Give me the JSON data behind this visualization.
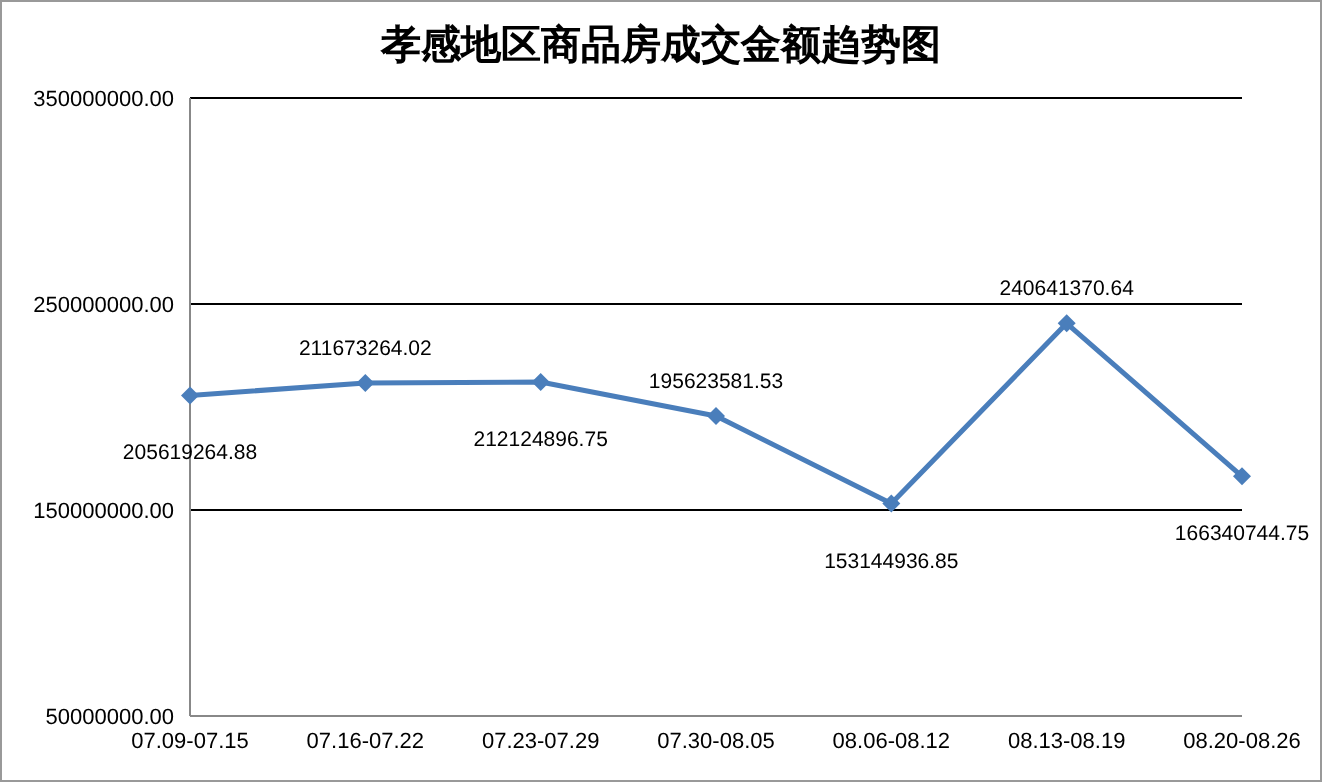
{
  "chart_data": {
    "type": "line",
    "title": "孝感地区商品房成交金额趋势图",
    "categories": [
      "07.09-07.15",
      "07.16-07.22",
      "07.23-07.29",
      "07.30-08.05",
      "08.06-08.12",
      "08.13-08.19",
      "08.20-08.26"
    ],
    "series": [
      {
        "color": "#4a7ebb",
        "values": [
          205619264.88,
          211673264.02,
          212124896.75,
          195623581.53,
          153144936.85,
          240641370.64,
          166340744.75
        ]
      }
    ],
    "ylim": [
      50000000,
      350000000
    ],
    "yticks": [
      {
        "value": 50000000,
        "label": "50000000.00"
      },
      {
        "value": 150000000,
        "label": "150000000.00"
      },
      {
        "value": 250000000,
        "label": "250000000.00"
      },
      {
        "value": 350000000,
        "label": "350000000.00"
      }
    ],
    "grid": "y",
    "marker": "diamond",
    "line_style": "solid",
    "data_labels": true,
    "legend": false
  }
}
